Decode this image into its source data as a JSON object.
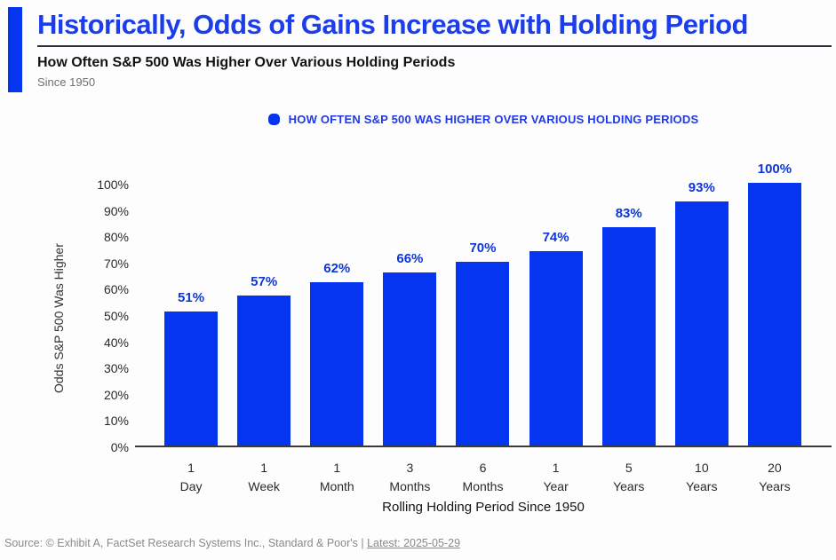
{
  "header": {
    "title": "Historically, Odds of Gains Increase with Holding Period",
    "subtitle": "How Often S&P 500 Was Higher Over Various Holding Periods",
    "tagline": "Since 1950"
  },
  "legend": {
    "label": "HOW OFTEN S&P 500 WAS HIGHER OVER VARIOUS HOLDING PERIODS"
  },
  "chart_data": {
    "type": "bar",
    "title": "How Often S&P 500 Was Higher Over Various Holding Periods",
    "categories": [
      [
        "1",
        "Day"
      ],
      [
        "1",
        "Week"
      ],
      [
        "1",
        "Month"
      ],
      [
        "3",
        "Months"
      ],
      [
        "6",
        "Months"
      ],
      [
        "1",
        "Year"
      ],
      [
        "5",
        "Years"
      ],
      [
        "10",
        "Years"
      ],
      [
        "20",
        "Years"
      ]
    ],
    "values": [
      51,
      57,
      62,
      66,
      70,
      74,
      83,
      93,
      100
    ],
    "value_labels": [
      "51%",
      "57%",
      "62%",
      "66%",
      "70%",
      "74%",
      "83%",
      "93%",
      "100%"
    ],
    "xlabel": "Rolling Holding Period Since 1950",
    "ylabel": "Odds S&P 500 Was Higher",
    "ylim": [
      0,
      100
    ],
    "yticks": [
      "0%",
      "10%",
      "20%",
      "30%",
      "40%",
      "50%",
      "60%",
      "70%",
      "80%",
      "90%",
      "100%"
    ],
    "grid": false,
    "legend_position": "top",
    "bar_color": "#0535f0",
    "value_label_color": "#0d36d6"
  },
  "footer": {
    "source_prefix": "Source: © Exhibit A, FactSet Research Systems Inc., Standard & Poor's | ",
    "latest_link": "Latest: 2025-05-29"
  },
  "colors": {
    "title_blue": "#1c3deb",
    "bar_blue": "#0535f0",
    "label_blue": "#0d36d6",
    "legend_blue": "#2039e2",
    "divider_dark": "#2e2e3c",
    "axis_line": "#3a3a3a",
    "footer_gray": "#8a8a8a"
  }
}
